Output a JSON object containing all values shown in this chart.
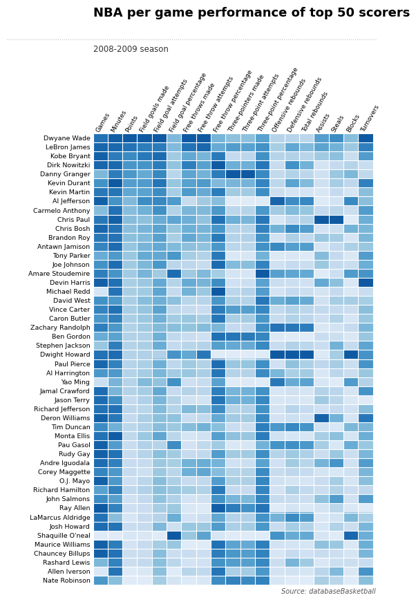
{
  "title": "NBA per game performance of top 50 scorers",
  "subtitle": "2008-2009 season",
  "source": "Source: databaseBasketball",
  "columns": [
    "Games",
    "Minutes",
    "Points",
    "Field goals made",
    "Field goal attempts",
    "Field goal percentage",
    "Free throws made",
    "Free throw attempts",
    "Free throw percentage",
    "Three-pointers made",
    "Three-point attempts",
    "Three-point percentage",
    "Offensive rebounds",
    "Defensive rebounds",
    "Total rebounds",
    "Assists",
    "Steals",
    "Blocks",
    "Turnovers"
  ],
  "players": [
    "Dwyane Wade",
    "LeBron James",
    "Kobe Bryant",
    "Dirk Nowitzki",
    "Danny Granger",
    "Kevin Durant",
    "Kevin Martin",
    "Al Jefferson",
    "Carmelo Anthony",
    "Chris Paul",
    "Chris Bosh",
    "Brandon Roy",
    "Antawn Jamison",
    "Tony Parker",
    "Joe Johnson",
    "Amare Stoudemire",
    "Devin Harris",
    "Michael Redd",
    "David West",
    "Vince Carter",
    "Caron Butler",
    "Zachary Randolph",
    "Ben Gordon",
    "Stephen Jackson",
    "Dwight Howard",
    "Paul Pierce",
    "Al Harrington",
    "Yao Ming",
    "Jamal Crawford",
    "Jason Terry",
    "Richard Jefferson",
    "Deron Williams",
    "Tim Duncan",
    "Monta Ellis",
    "Pau Gasol",
    "Rudy Gay",
    "Andre Iguodala",
    "Corey Maggette",
    "O.J. Mayo",
    "Richard Hamilton",
    "John Salmons",
    "Ray Allen",
    "LaMarcus Aldridge",
    "Josh Howard",
    "Shaquille O'neal",
    "Maurice Williams",
    "Chauncey Billups",
    "Rashard Lewis",
    "Allen Iverson",
    "Nate Robinson"
  ],
  "data": [
    [
      79,
      38.6,
      30.2,
      10.6,
      22.0,
      0.491,
      7.9,
      10.4,
      0.765,
      1.1,
      3.0,
      0.3,
      1.1,
      3.9,
      5.0,
      7.5,
      2.2,
      1.3,
      3.4
    ],
    [
      81,
      37.7,
      28.4,
      9.7,
      19.9,
      0.489,
      7.3,
      9.9,
      0.78,
      1.7,
      4.4,
      0.35,
      1.3,
      6.3,
      7.6,
      7.2,
      1.7,
      1.1,
      3.0
    ],
    [
      82,
      36.2,
      26.8,
      9.8,
      20.9,
      0.467,
      5.9,
      7.0,
      0.856,
      0.5,
      1.6,
      0.351,
      1.1,
      4.1,
      5.2,
      4.9,
      1.5,
      0.5,
      2.7
    ],
    [
      81,
      37.7,
      25.9,
      9.1,
      19.8,
      0.478,
      7.0,
      7.8,
      0.902,
      1.4,
      3.8,
      0.421,
      0.8,
      7.3,
      8.1,
      2.4,
      1.0,
      0.8,
      1.8
    ],
    [
      67,
      36.2,
      25.8,
      8.5,
      19.1,
      0.449,
      6.0,
      7.1,
      0.853,
      2.7,
      7.3,
      0.374,
      0.9,
      4.1,
      5.0,
      2.7,
      1.4,
      1.4,
      1.9
    ],
    [
      74,
      39.0,
      25.3,
      8.9,
      20.3,
      0.476,
      6.1,
      8.1,
      0.756,
      1.3,
      3.6,
      0.384,
      1.0,
      6.5,
      7.6,
      2.8,
      1.3,
      0.7,
      3.0
    ],
    [
      78,
      36.7,
      24.6,
      8.7,
      18.8,
      0.463,
      6.3,
      7.4,
      0.852,
      0.9,
      2.5,
      0.36,
      0.7,
      2.7,
      3.4,
      2.1,
      1.0,
      0.3,
      2.3
    ],
    [
      82,
      34.4,
      23.1,
      9.3,
      19.2,
      0.527,
      4.1,
      6.0,
      0.749,
      0.0,
      0.0,
      0.0,
      3.6,
      7.5,
      11.1,
      1.9,
      0.8,
      2.2,
      2.3
    ],
    [
      66,
      37.1,
      22.8,
      8.3,
      18.6,
      0.455,
      5.5,
      6.8,
      0.812,
      0.6,
      1.8,
      0.333,
      1.4,
      5.4,
      6.8,
      3.4,
      1.1,
      0.5,
      2.7
    ],
    [
      78,
      38.5,
      22.8,
      7.8,
      16.6,
      0.514,
      5.7,
      6.4,
      0.868,
      1.4,
      3.5,
      0.421,
      0.4,
      3.6,
      5.5,
      11.0,
      2.8,
      0.1,
      2.5
    ],
    [
      81,
      36.9,
      22.7,
      8.2,
      17.2,
      0.476,
      5.7,
      7.0,
      0.814,
      0.7,
      1.8,
      0.389,
      2.0,
      7.6,
      9.6,
      2.5,
      0.9,
      1.5,
      2.4
    ],
    [
      78,
      36.9,
      22.6,
      8.0,
      17.4,
      0.461,
      5.9,
      6.9,
      0.856,
      0.7,
      2.0,
      0.35,
      0.5,
      4.2,
      4.7,
      5.1,
      1.3,
      0.3,
      2.4
    ],
    [
      76,
      37.5,
      22.2,
      8.2,
      16.8,
      0.489,
      5.2,
      6.4,
      0.813,
      0.6,
      1.7,
      0.353,
      2.9,
      6.7,
      9.6,
      2.3,
      1.0,
      0.9,
      2.2
    ],
    [
      69,
      33.8,
      22.0,
      8.5,
      16.9,
      0.53,
      4.8,
      5.6,
      0.857,
      0.1,
      0.4,
      0.25,
      0.3,
      2.4,
      2.7,
      5.8,
      1.0,
      0.2,
      2.7
    ],
    [
      74,
      37.4,
      21.7,
      8.1,
      18.1,
      0.447,
      4.3,
      4.9,
      0.878,
      1.2,
      3.1,
      0.387,
      0.6,
      3.4,
      4.1,
      5.0,
      1.0,
      0.5,
      2.5
    ],
    [
      77,
      34.3,
      21.6,
      8.2,
      14.3,
      0.574,
      4.9,
      6.8,
      0.721,
      0.2,
      0.4,
      0.5,
      2.4,
      6.4,
      8.8,
      1.7,
      0.9,
      1.9,
      2.8
    ],
    [
      82,
      37.2,
      21.3,
      7.6,
      16.8,
      0.452,
      5.8,
      7.0,
      0.829,
      0.3,
      1.0,
      0.3,
      0.7,
      3.1,
      3.8,
      6.9,
      1.5,
      0.2,
      3.4
    ],
    [
      55,
      36.9,
      21.2,
      7.5,
      17.1,
      0.439,
      5.6,
      6.2,
      0.903,
      0.6,
      1.9,
      0.316,
      0.5,
      3.5,
      4.0,
      2.4,
      1.0,
      0.2,
      1.8
    ],
    [
      74,
      33.9,
      21.1,
      7.9,
      16.4,
      0.482,
      4.4,
      5.4,
      0.815,
      0.8,
      1.9,
      0.421,
      2.1,
      6.6,
      8.7,
      2.7,
      1.3,
      1.0,
      2.1
    ],
    [
      76,
      37.1,
      21.3,
      7.7,
      17.3,
      0.445,
      4.1,
      4.8,
      0.854,
      1.7,
      4.5,
      0.378,
      0.9,
      4.1,
      5.0,
      3.5,
      1.0,
      0.5,
      2.3
    ],
    [
      73,
      35.8,
      21.1,
      7.6,
      16.3,
      0.466,
      5.0,
      5.8,
      0.862,
      0.8,
      2.4,
      0.333,
      0.8,
      4.1,
      5.0,
      2.9,
      1.2,
      0.3,
      2.2
    ],
    [
      77,
      33.9,
      20.7,
      7.5,
      15.5,
      0.484,
      5.1,
      6.7,
      0.761,
      0.5,
      1.4,
      0.357,
      3.3,
      8.3,
      11.7,
      2.1,
      0.8,
      0.6,
      2.4
    ],
    [
      69,
      32.9,
      20.7,
      7.2,
      16.3,
      0.442,
      4.0,
      4.6,
      0.87,
      2.3,
      6.0,
      0.383,
      0.3,
      2.1,
      2.5,
      3.1,
      0.9,
      0.2,
      2.2
    ],
    [
      64,
      36.0,
      20.6,
      7.3,
      16.6,
      0.44,
      4.4,
      5.5,
      0.8,
      1.5,
      4.0,
      0.375,
      0.8,
      4.1,
      5.0,
      3.1,
      1.7,
      0.6,
      2.6
    ],
    [
      79,
      37.5,
      20.6,
      7.2,
      13.5,
      0.533,
      5.9,
      9.3,
      0.634,
      0.0,
      0.0,
      0.0,
      3.8,
      9.5,
      13.8,
      1.9,
      1.3,
      2.9,
      2.8
    ],
    [
      81,
      35.7,
      20.5,
      7.3,
      16.4,
      0.445,
      4.9,
      5.6,
      0.875,
      1.0,
      2.8,
      0.357,
      0.6,
      5.1,
      5.8,
      3.7,
      1.3,
      0.5,
      2.8
    ],
    [
      73,
      33.8,
      20.6,
      7.4,
      15.9,
      0.466,
      5.0,
      5.8,
      0.862,
      0.7,
      1.9,
      0.368,
      1.9,
      4.3,
      6.2,
      2.1,
      1.1,
      0.5,
      2.2
    ],
    [
      57,
      31.3,
      20.5,
      8.0,
      14.9,
      0.537,
      3.9,
      4.9,
      0.796,
      0.0,
      0.1,
      0.0,
      3.2,
      6.1,
      9.3,
      2.2,
      0.6,
      1.9,
      2.0
    ],
    [
      80,
      31.2,
      20.6,
      7.4,
      16.9,
      0.438,
      4.5,
      5.3,
      0.849,
      1.3,
      3.7,
      0.351,
      0.4,
      2.9,
      3.3,
      4.1,
      1.1,
      0.3,
      2.8
    ],
    [
      80,
      34.7,
      19.6,
      7.2,
      15.9,
      0.453,
      3.8,
      4.4,
      0.864,
      1.4,
      3.7,
      0.378,
      0.4,
      2.6,
      3.0,
      4.9,
      1.1,
      0.2,
      1.5
    ],
    [
      79,
      37.0,
      20.1,
      7.0,
      15.5,
      0.452,
      5.4,
      6.5,
      0.831,
      0.7,
      2.0,
      0.35,
      0.5,
      3.9,
      4.5,
      2.8,
      1.0,
      0.4,
      2.3
    ],
    [
      82,
      36.5,
      19.6,
      7.3,
      15.2,
      0.48,
      4.0,
      5.1,
      0.784,
      0.9,
      2.4,
      0.375,
      0.5,
      3.1,
      3.6,
      10.5,
      1.7,
      0.3,
      3.1
    ],
    [
      75,
      31.7,
      20.1,
      7.2,
      15.3,
      0.471,
      5.3,
      7.1,
      0.746,
      0.4,
      1.0,
      0.4,
      2.6,
      7.7,
      10.3,
      2.7,
      0.7,
      1.4,
      2.4
    ],
    [
      79,
      38.7,
      19.9,
      7.6,
      17.0,
      0.447,
      3.6,
      4.5,
      0.8,
      1.1,
      2.7,
      0.407,
      0.6,
      2.5,
      3.1,
      4.6,
      1.5,
      0.3,
      2.5
    ],
    [
      82,
      33.5,
      19.2,
      7.2,
      13.3,
      0.541,
      3.7,
      5.1,
      0.725,
      0.1,
      0.4,
      0.25,
      2.7,
      7.4,
      10.0,
      4.6,
      0.7,
      1.6,
      2.2
    ],
    [
      82,
      37.0,
      19.3,
      7.1,
      15.2,
      0.467,
      4.1,
      5.1,
      0.804,
      0.9,
      2.5,
      0.36,
      1.1,
      4.7,
      5.8,
      3.0,
      1.4,
      0.5,
      2.4
    ],
    [
      80,
      35.9,
      19.4,
      6.7,
      14.5,
      0.462,
      5.6,
      7.3,
      0.767,
      0.3,
      1.0,
      0.3,
      0.6,
      4.6,
      5.2,
      6.3,
      2.1,
      0.4,
      2.7
    ],
    [
      76,
      33.9,
      19.5,
      6.5,
      14.5,
      0.448,
      5.7,
      7.6,
      0.75,
      0.7,
      1.9,
      0.368,
      0.8,
      3.7,
      4.5,
      2.4,
      0.7,
      0.4,
      2.4
    ],
    [
      82,
      33.9,
      18.9,
      7.0,
      15.3,
      0.458,
      4.1,
      5.1,
      0.804,
      0.8,
      2.1,
      0.381,
      0.6,
      2.7,
      3.3,
      3.1,
      1.3,
      0.3,
      2.3
    ],
    [
      71,
      35.8,
      19.8,
      7.2,
      15.2,
      0.474,
      4.8,
      5.6,
      0.857,
      0.5,
      1.3,
      0.385,
      0.5,
      4.2,
      4.7,
      3.0,
      1.2,
      0.5,
      1.9
    ],
    [
      75,
      33.2,
      18.6,
      6.8,
      14.9,
      0.456,
      3.7,
      4.5,
      0.822,
      1.3,
      3.4,
      0.382,
      0.8,
      3.3,
      4.1,
      5.4,
      2.0,
      0.4,
      2.7
    ],
    [
      83,
      35.7,
      18.9,
      6.6,
      14.0,
      0.471,
      3.5,
      3.9,
      0.897,
      2.2,
      5.1,
      0.431,
      0.2,
      2.7,
      2.9,
      2.4,
      1.1,
      0.2,
      1.5
    ],
    [
      79,
      30.4,
      17.9,
      6.7,
      13.3,
      0.504,
      3.7,
      4.7,
      0.787,
      0.7,
      2.0,
      0.35,
      2.0,
      7.6,
      9.7,
      2.0,
      0.8,
      1.4,
      2.1
    ],
    [
      80,
      36.8,
      19.2,
      6.7,
      15.7,
      0.427,
      5.0,
      6.2,
      0.806,
      0.8,
      2.4,
      0.333,
      0.8,
      4.5,
      5.4,
      2.2,
      1.2,
      0.5,
      2.4
    ],
    [
      53,
      24.0,
      17.8,
      6.1,
      10.3,
      0.593,
      5.0,
      7.7,
      0.649,
      0.0,
      0.0,
      0.0,
      2.7,
      6.1,
      8.8,
      2.3,
      0.6,
      2.7,
      2.5
    ],
    [
      82,
      36.1,
      18.3,
      6.7,
      14.1,
      0.475,
      3.3,
      3.8,
      0.868,
      1.6,
      4.0,
      0.4,
      0.5,
      2.7,
      3.3,
      5.4,
      1.4,
      0.2,
      2.5
    ],
    [
      82,
      37.0,
      19.0,
      6.6,
      15.3,
      0.431,
      4.0,
      4.7,
      0.851,
      1.8,
      4.6,
      0.391,
      0.4,
      3.4,
      3.8,
      3.2,
      0.9,
      0.3,
      2.4
    ],
    [
      67,
      35.7,
      19.0,
      6.8,
      15.2,
      0.447,
      3.7,
      4.5,
      0.822,
      1.7,
      4.5,
      0.378,
      0.7,
      5.7,
      6.4,
      2.1,
      0.9,
      0.5,
      1.8
    ],
    [
      54,
      36.8,
      17.4,
      6.1,
      15.1,
      0.404,
      4.4,
      5.1,
      0.863,
      0.8,
      2.4,
      0.333,
      0.5,
      2.8,
      3.3,
      3.8,
      1.6,
      0.2,
      2.8
    ],
    [
      73,
      30.3,
      17.2,
      5.9,
      14.1,
      0.418,
      3.4,
      4.1,
      0.829,
      2.1,
      5.4,
      0.389,
      0.4,
      2.1,
      2.5,
      4.5,
      1.1,
      0.1,
      2.3
    ]
  ]
}
